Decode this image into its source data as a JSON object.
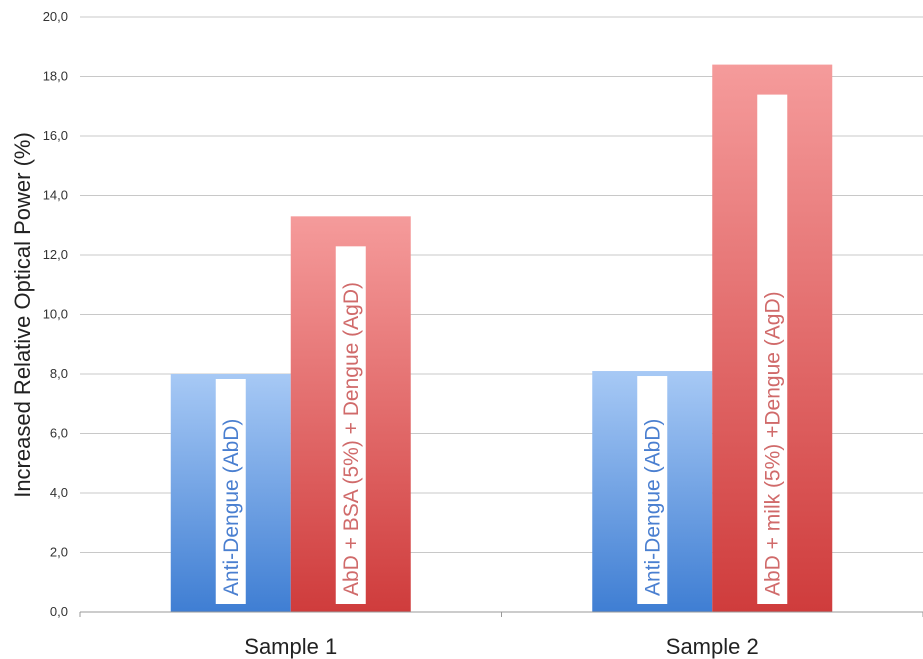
{
  "chart_data": {
    "type": "bar",
    "title": "",
    "xlabel": "",
    "ylabel": "Increased Relative Optical Power (%)",
    "ylim": [
      0,
      20
    ],
    "y_ticks": [
      "0,0",
      "2,0",
      "4,0",
      "6,0",
      "8,0",
      "10,0",
      "12,0",
      "14,0",
      "16,0",
      "18,0",
      "20,0"
    ],
    "grid": true,
    "legend": "none",
    "categories": [
      "Sample 1",
      "Sample 2"
    ],
    "series": [
      {
        "values": [
          8.0,
          8.1
        ],
        "bar_labels": [
          "Anti-Dengue  (AbD)",
          "Anti-Dengue  (AbD)"
        ]
      },
      {
        "values": [
          13.3,
          18.4
        ],
        "bar_labels": [
          "AbD + BSA (5%) + Dengue (AgD)",
          "AbD + milk (5%) +Dengue (AgD)"
        ]
      }
    ],
    "colors": {
      "series1_top": "#a7c9f5",
      "series1_bottom": "#3f7ed3",
      "series1_text": "#4a7fd0",
      "series2_top": "#f59b9b",
      "series2_bottom": "#cf3c3c",
      "series2_text": "#d06a6a",
      "grid": "#c8c8c8",
      "axis": "#999999"
    }
  }
}
